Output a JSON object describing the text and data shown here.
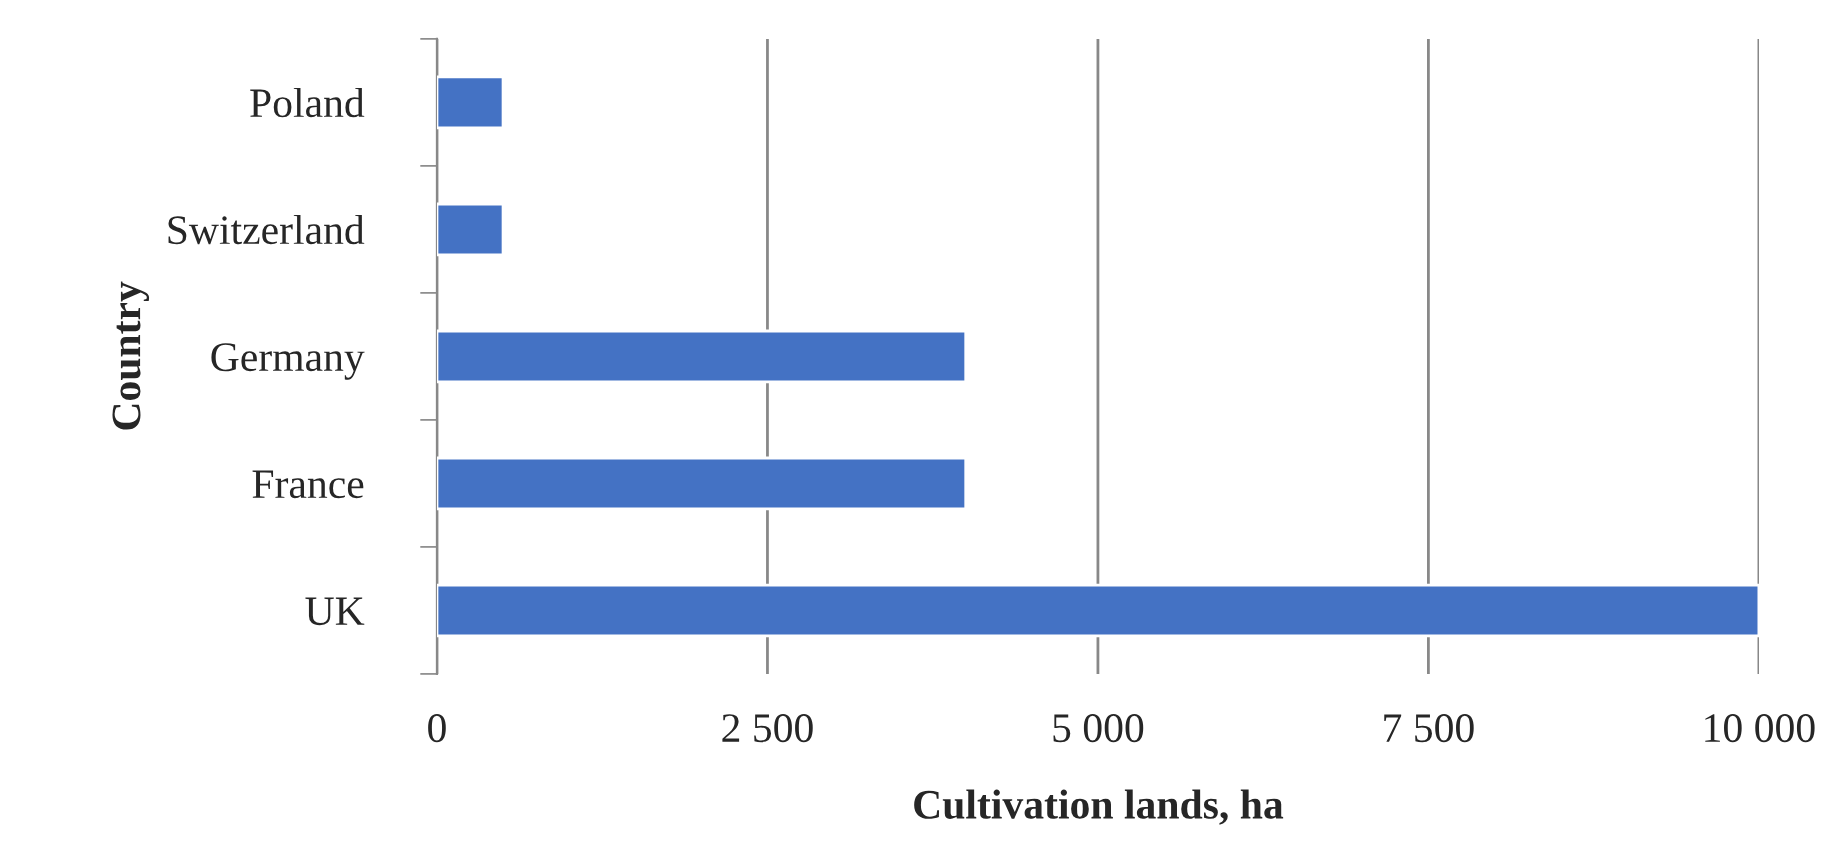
{
  "chart_data": {
    "type": "bar",
    "orientation": "horizontal",
    "xlabel": "Cultivation lands, ha",
    "ylabel": "Country",
    "categories": [
      "Poland",
      "Switzerland",
      "Germany",
      "France",
      "UK"
    ],
    "values": [
      500,
      500,
      4000,
      4000,
      10000
    ],
    "color": "#4472c4",
    "xlim": [
      0,
      10000
    ],
    "xticks": [
      0,
      {
        "value": 2500,
        "label": "2 500"
      },
      {
        "value": 5000,
        "label": "5 000"
      },
      {
        "value": 7500,
        "label": "7 500"
      },
      {
        "value": 10000,
        "label": "10 000"
      }
    ],
    "grid": "x"
  }
}
